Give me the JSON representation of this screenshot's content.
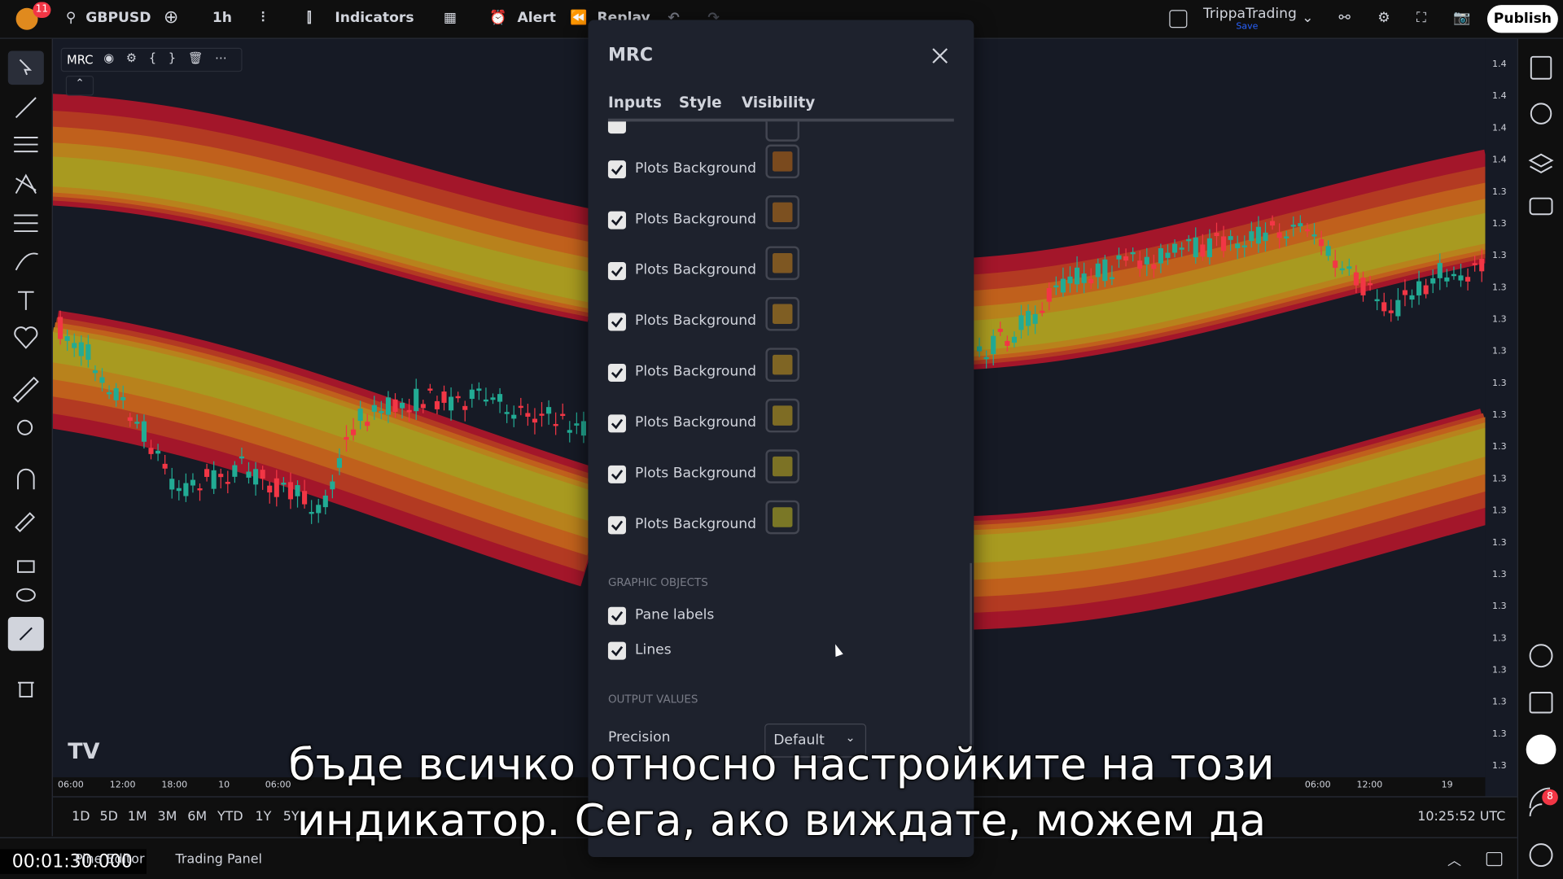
{
  "top_bar": {
    "notification_count": "11",
    "symbol": "GBPUSD",
    "interval": "1h",
    "indicators": "Indicators",
    "alert": "Alert",
    "replay": "Replay",
    "account": "TrippaTrading",
    "save": "Save",
    "publish": "Publish"
  },
  "indicator_legend": {
    "name": "MRC"
  },
  "dialog": {
    "title": "MRC",
    "tabs": [
      "Inputs",
      "Style",
      "Visibility"
    ],
    "rows": [
      {
        "label": "Plots Background",
        "checked": true,
        "color": "#7a4a1e"
      },
      {
        "label": "Plots Background",
        "checked": true,
        "color": "#7c5020"
      },
      {
        "label": "Plots Background",
        "checked": true,
        "color": "#7e5722"
      },
      {
        "label": "Plots Background",
        "checked": true,
        "color": "#7f5e23"
      },
      {
        "label": "Plots Background",
        "checked": true,
        "color": "#7f6524"
      },
      {
        "label": "Plots Background",
        "checked": true,
        "color": "#7e6c24"
      },
      {
        "label": "Plots Background",
        "checked": true,
        "color": "#7c7225"
      },
      {
        "label": "Plots Background",
        "checked": true,
        "color": "#7a7726"
      }
    ],
    "graphic_objects": {
      "title": "GRAPHIC OBJECTS",
      "items": [
        {
          "label": "Pane labels",
          "checked": true
        },
        {
          "label": "Lines",
          "checked": true
        }
      ]
    },
    "output_values": {
      "title": "OUTPUT VALUES",
      "precision_label": "Precision",
      "precision_value": "Default"
    }
  },
  "price_axis": {
    "labels": [
      "1.4",
      "1.4",
      "1.4",
      "1.4",
      "1.3",
      "1.3",
      "1.3",
      "1.3",
      "1.3",
      "1.3",
      "1.3",
      "1.3",
      "1.3",
      "1.3",
      "1.3",
      "1.3",
      "1.3",
      "1.3",
      "1.3",
      "1.3",
      "1.3",
      "1.3",
      "1.3"
    ]
  },
  "time_axis": {
    "labels": [
      "06:00",
      "12:00",
      "18:00",
      "10",
      "06:00",
      "06:00",
      "12:00",
      "19"
    ]
  },
  "bottom_bar": {
    "ranges": [
      "1D",
      "5D",
      "1M",
      "3M",
      "6M",
      "YTD",
      "1Y",
      "5Y"
    ],
    "clock": "10:25:52 UTC",
    "tabs": [
      "Pine Editor",
      "Trading Panel"
    ]
  },
  "right_toolbar": {
    "notification_count": "8"
  },
  "subtitle": {
    "lines": [
      "бъде всичко относно настройките на този",
      "индикатор. Сега, ако виждате, можем да"
    ]
  },
  "timestamp": "00:01:30.000"
}
